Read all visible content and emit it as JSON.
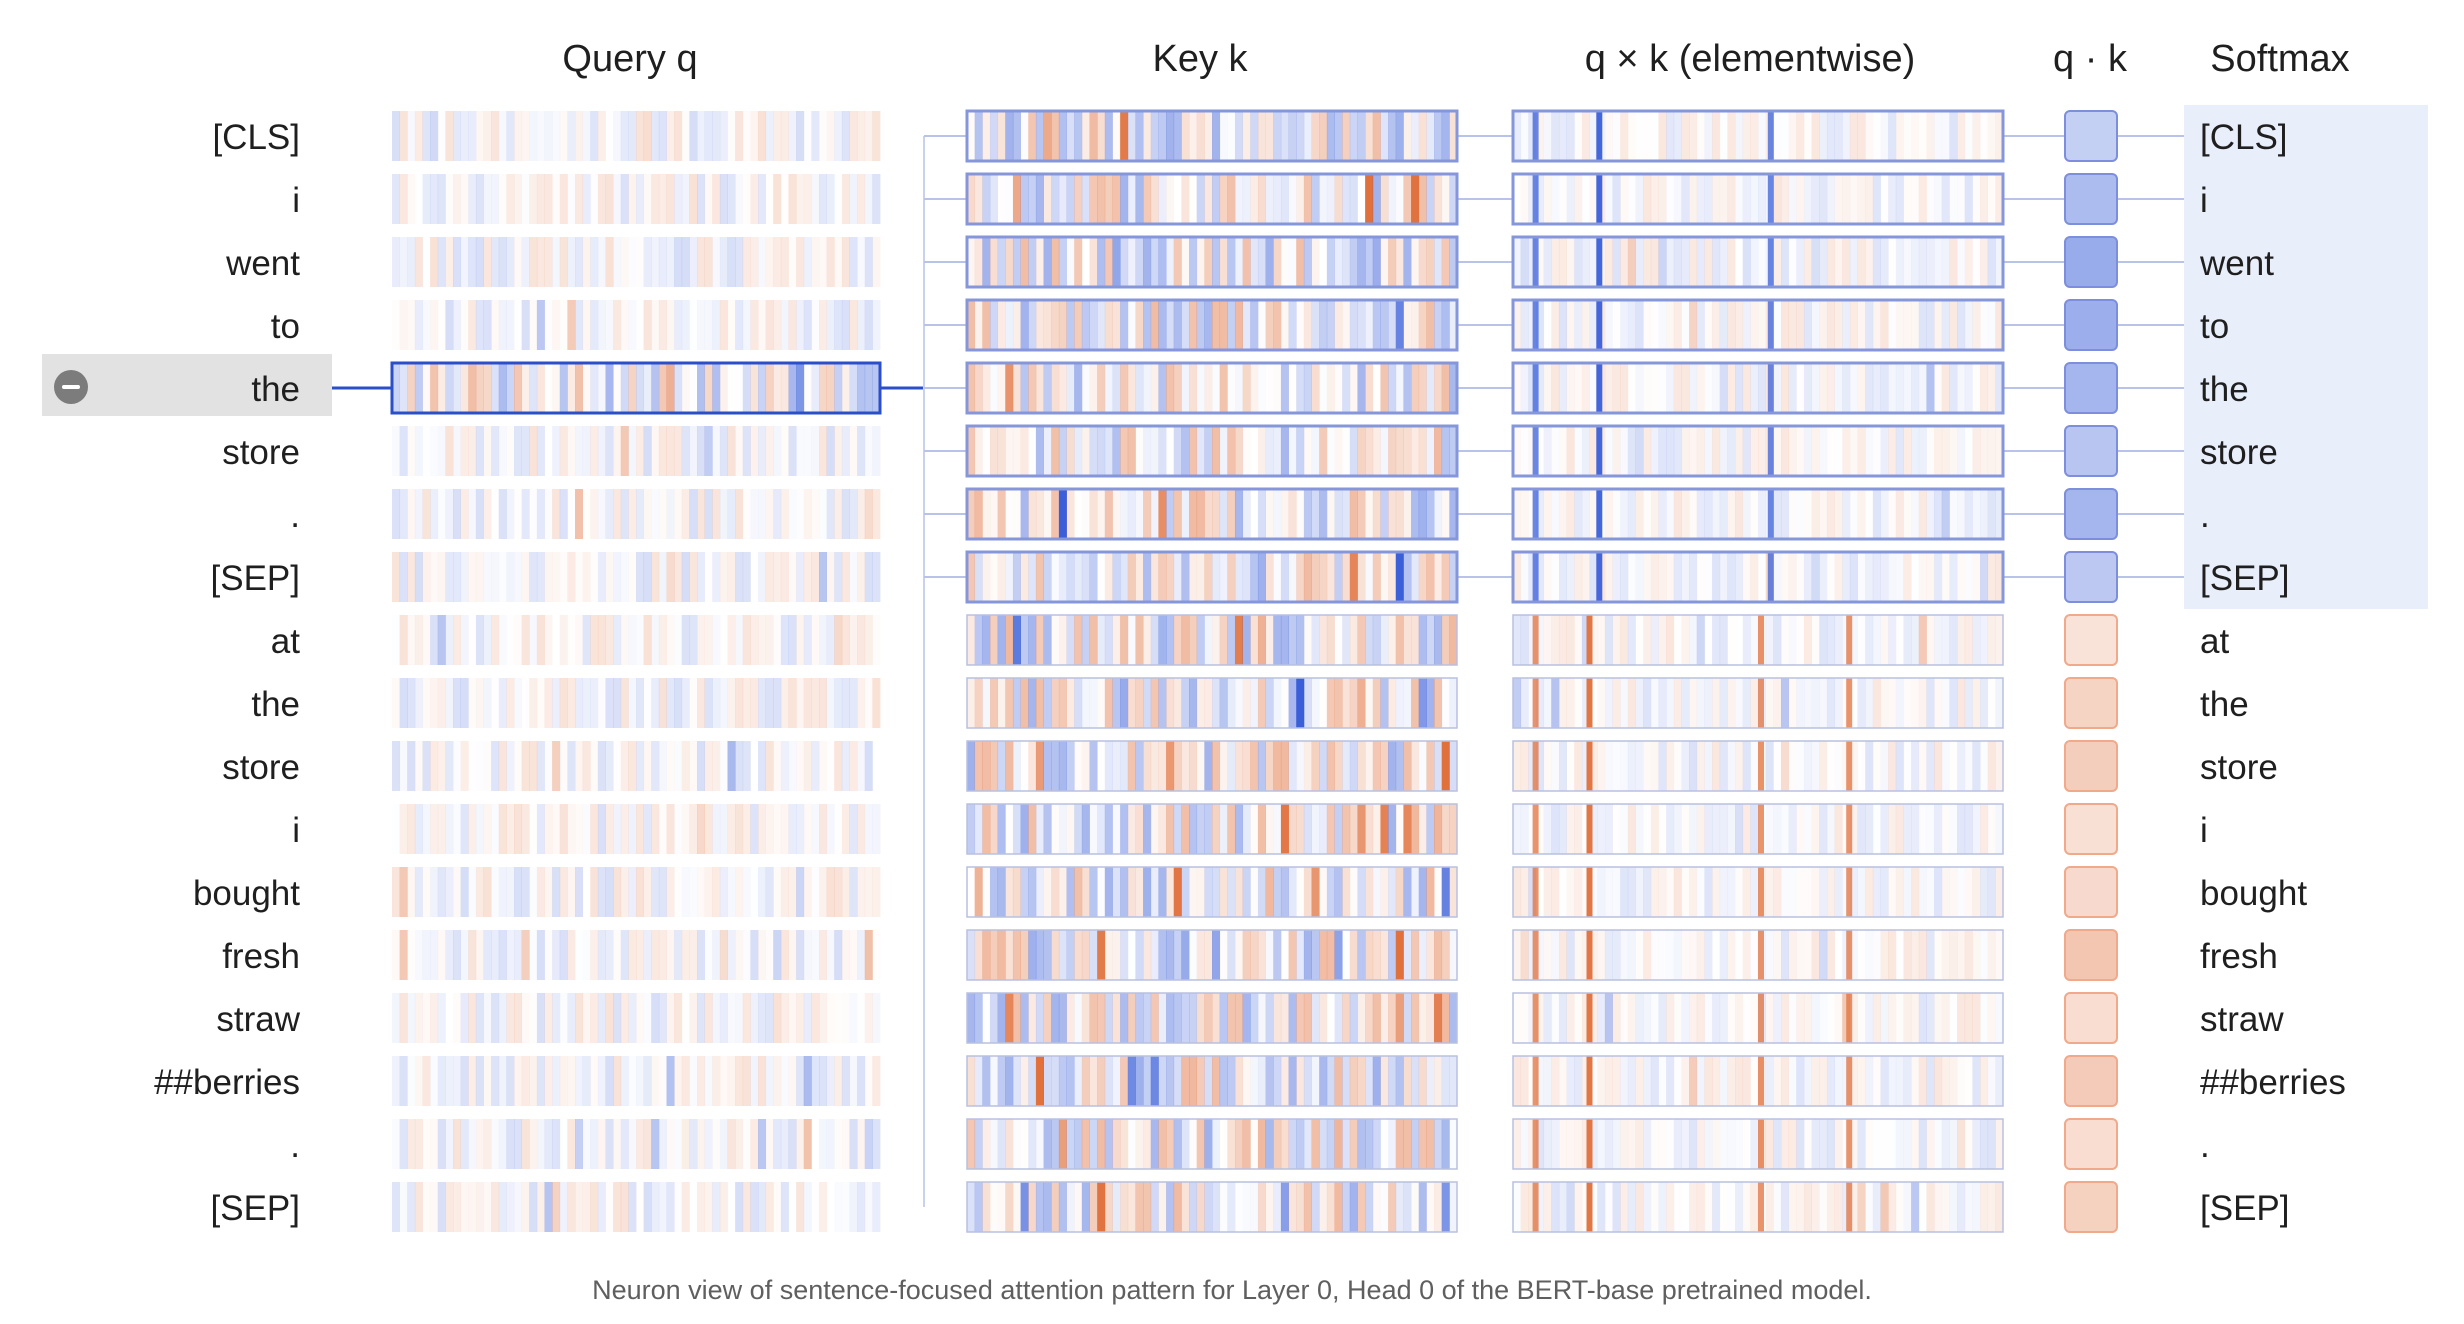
{
  "headers": {
    "query": "Query q",
    "key": "Key k",
    "elementwise": "q × k (elementwise)",
    "dot": "q · k",
    "softmax": "Softmax"
  },
  "tokens": [
    "[CLS]",
    "i",
    "went",
    "to",
    "the",
    "store",
    ".",
    "[SEP]",
    "at",
    "the",
    "store",
    "i",
    "bought",
    "fresh",
    "straw",
    "##berries",
    ".",
    "[SEP]"
  ],
  "selected_index": 4,
  "sentence_a_count": 8,
  "caption": "Neuron view of sentence-focused attention pattern for Layer 0, Head 0 of the BERT-base pretrained model.",
  "colors": {
    "blue": "#3a5fd9",
    "orange": "#e0703c",
    "selection_line": "#2a4fc9",
    "box_blue": "#8597da",
    "box_orange": "#f0a98a"
  },
  "dot_levels": [
    0.3,
    0.42,
    0.52,
    0.5,
    0.46,
    0.36,
    0.46,
    0.34,
    -0.2,
    -0.3,
    -0.34,
    -0.22,
    -0.26,
    -0.4,
    -0.24,
    -0.36,
    -0.24,
    -0.32
  ]
}
